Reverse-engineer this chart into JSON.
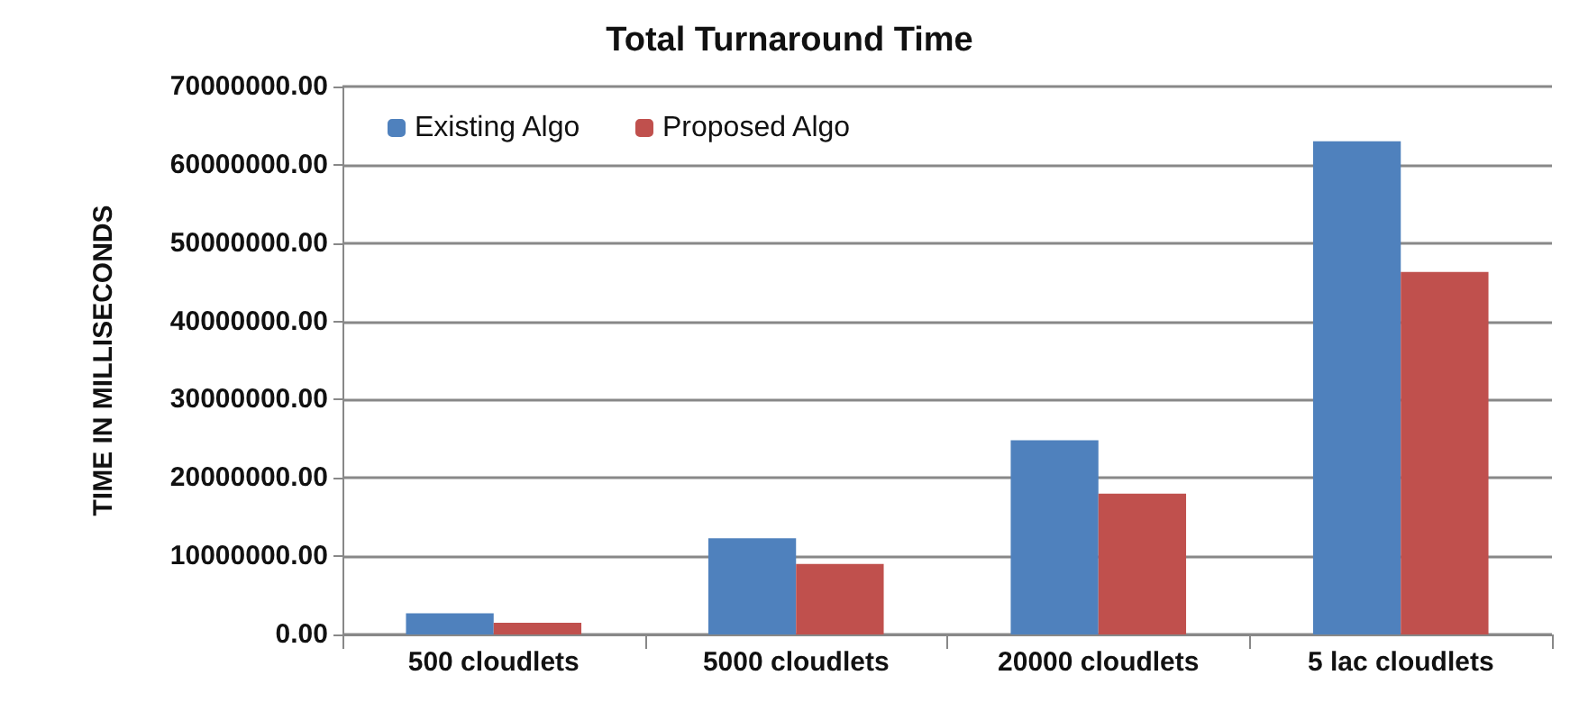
{
  "chart_data": {
    "type": "bar",
    "title": "Total Turnaround Time",
    "ylabel": "TIME IN MILLISECONDS",
    "categories": [
      "500 cloudlets",
      "5000 cloudlets",
      "20000 cloudlets",
      "5 lac cloudlets"
    ],
    "series": [
      {
        "name": "Existing Algo",
        "color": "#4f81bd",
        "values": [
          2700000,
          12300000,
          24800000,
          63000000
        ]
      },
      {
        "name": "Proposed Algo",
        "color": "#c0504d",
        "values": [
          1500000,
          9000000,
          18000000,
          46300000
        ]
      }
    ],
    "ylim": [
      0,
      70000000
    ],
    "yticks": [
      {
        "value": 0,
        "label": "0.00"
      },
      {
        "value": 10000000,
        "label": "10000000.00"
      },
      {
        "value": 20000000,
        "label": "20000000.00"
      },
      {
        "value": 30000000,
        "label": "30000000.00"
      },
      {
        "value": 40000000,
        "label": "40000000.00"
      },
      {
        "value": 50000000,
        "label": "50000000.00"
      },
      {
        "value": 60000000,
        "label": "60000000.00"
      },
      {
        "value": 70000000,
        "label": "70000000.00"
      }
    ],
    "grid": "y",
    "legend": "top left"
  }
}
